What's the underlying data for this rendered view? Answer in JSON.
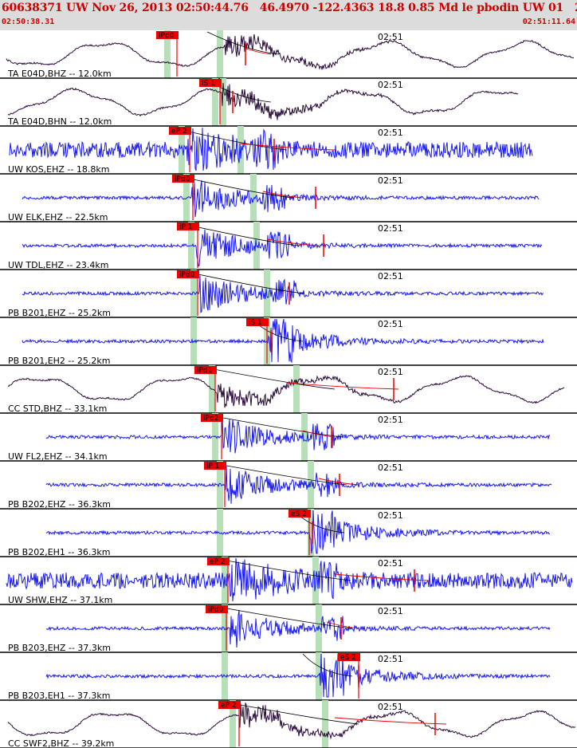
{
  "header": {
    "title": "60638371 UW Nov 26, 2013 02:50:44.76   46.4970 -122.4363 18.8 0.85 Md le pbodin UW 01   2",
    "time_start": "02:50:38.31",
    "time_end": "02:51:11.64"
  },
  "colors": {
    "header_bg": "#dcdcdc",
    "header_text": "#cc0000",
    "trace_velocity": "#1a1aee",
    "trace_broadband": "#2a0a3a",
    "pick_box": "#ee0000",
    "pick_highlight": "#b8e0b8",
    "separator": "#000000"
  },
  "chart_data": {
    "type": "seismogram",
    "time_marker_label": "02:51",
    "panels": [
      {
        "label": "TA E04D,BHZ -- 12.0km",
        "pick_label": "IPd0",
        "kind": "broadband",
        "highlight": true
      },
      {
        "label": "TA E04D,BHN -- 12.0km",
        "pick_label": "IS 1",
        "kind": "broadband",
        "highlight": true
      },
      {
        "label": "UW KOS,EHZ -- 18.8km",
        "pick_label": "eP 2",
        "kind": "velocity",
        "highlight": true
      },
      {
        "label": "UW ELK,EHZ -- 22.5km",
        "pick_label": "iPd0",
        "kind": "velocity",
        "highlight": true
      },
      {
        "label": "UW TDL,EHZ -- 23.4km",
        "pick_label": "iP 1",
        "kind": "velocity",
        "highlight": true
      },
      {
        "label": "PB B201,EHZ -- 25.2km",
        "pick_label": "iPd0",
        "kind": "velocity",
        "highlight": true
      },
      {
        "label": "PB B201,EH2 -- 25.2km",
        "pick_label": "iS 1",
        "kind": "velocity",
        "highlight": true
      },
      {
        "label": "CC STD,BHZ -- 33.1km",
        "pick_label": "iPd1",
        "kind": "broadband",
        "highlight": true
      },
      {
        "label": "UW FL2,EHZ -- 34.1km",
        "pick_label": "iPd2",
        "kind": "velocity",
        "highlight": true
      },
      {
        "label": "PB B202,EHZ -- 36.3km",
        "pick_label": "iP 1",
        "kind": "velocity",
        "highlight": true
      },
      {
        "label": "PB B202,EH1 -- 36.3km",
        "pick_label": "eS 2",
        "kind": "velocity",
        "highlight": true
      },
      {
        "label": "UW SHW,EHZ -- 37.1km",
        "pick_label": "eP 2",
        "kind": "velocity",
        "highlight": true
      },
      {
        "label": "PB B203,EHZ -- 37.3km",
        "pick_label": "iPd0",
        "kind": "velocity",
        "highlight": true
      },
      {
        "label": "PB B203,EH1 -- 37.3km",
        "pick_label": "eS 2",
        "kind": "velocity",
        "highlight": true
      },
      {
        "label": "CC SWF2,BHZ -- 39.2km",
        "pick_label": "eP 2",
        "kind": "broadband",
        "highlight": true
      }
    ]
  }
}
